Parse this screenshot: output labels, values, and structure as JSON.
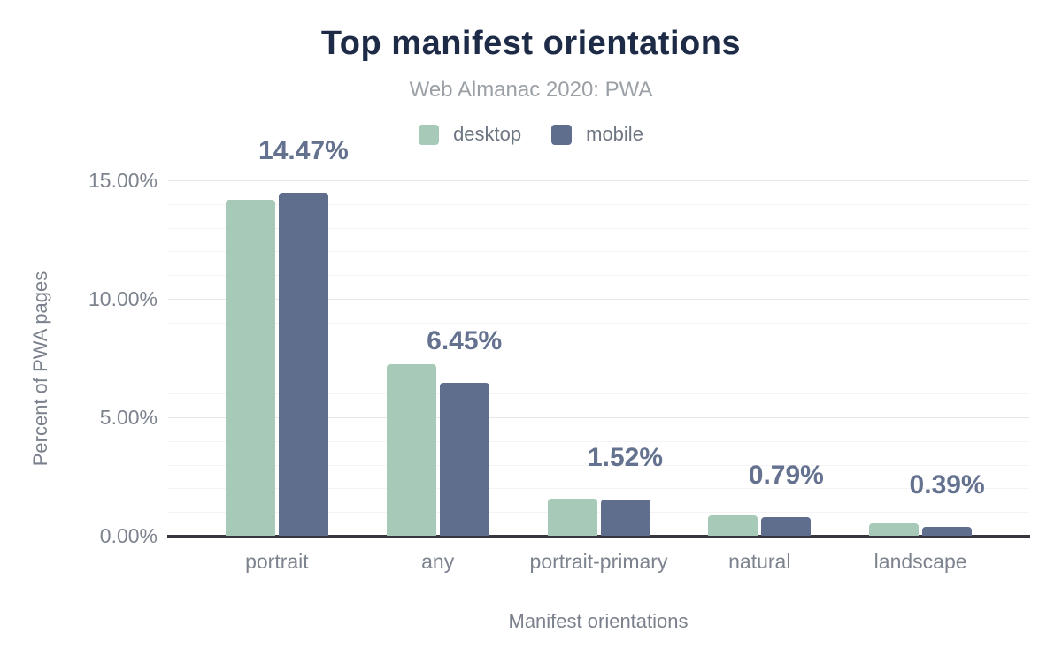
{
  "title": "Top manifest orientations",
  "subtitle": "Web Almanac 2020: PWA",
  "legend": {
    "items": [
      {
        "label": "desktop",
        "color": "#a6c9b8"
      },
      {
        "label": "mobile",
        "color": "#5f6e8c"
      }
    ]
  },
  "y_axis": {
    "title": "Percent of PWA pages",
    "tick_labels": [
      "0.00%",
      "5.00%",
      "10.00%",
      "15.00%"
    ]
  },
  "x_axis": {
    "title": "Manifest orientations",
    "labels": [
      "portrait",
      "any",
      "portrait-primary",
      "natural",
      "landscape"
    ]
  },
  "chart_data": {
    "type": "bar",
    "title": "Top manifest orientations",
    "subtitle": "Web Almanac 2020: PWA",
    "categories": [
      "portrait",
      "any",
      "portrait-primary",
      "natural",
      "landscape"
    ],
    "series": [
      {
        "name": "desktop",
        "color": "#a6c9b8",
        "values": [
          14.18,
          7.25,
          1.57,
          0.86,
          0.52
        ]
      },
      {
        "name": "mobile",
        "color": "#5f6e8c",
        "values": [
          14.47,
          6.45,
          1.52,
          0.79,
          0.39
        ]
      }
    ],
    "data_labels": {
      "series": "mobile",
      "values": [
        "14.47%",
        "6.45%",
        "1.52%",
        "0.79%",
        "0.39%"
      ],
      "color": "#64718f"
    },
    "xlabel": "Manifest orientations",
    "ylabel": "Percent of PWA pages",
    "ylim": [
      0,
      15
    ],
    "y_major_step": 5,
    "y_minor_step": 1,
    "grid": true,
    "legend_position": "top"
  },
  "colors": {
    "title": "#1e2b47",
    "subtitle": "#9aa0a6",
    "axis_text": "#7d838e",
    "major_grid": "#e6e6ec",
    "minor_grid": "#f4f4f7",
    "baseline": "#36363e"
  }
}
